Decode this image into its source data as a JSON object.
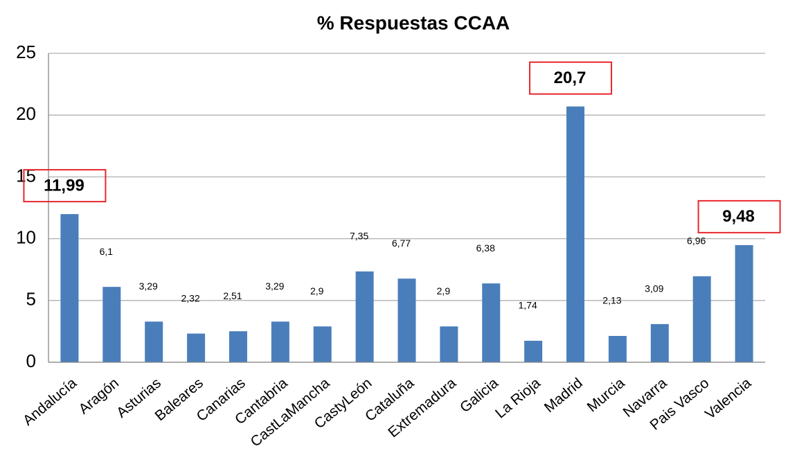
{
  "chart_data": {
    "type": "bar",
    "title": "% Respuestas CCAA",
    "categories": [
      "Andalucía",
      "Aragón",
      "Asturias",
      "Baleares",
      "Canarias",
      "Cantabria",
      "CastLaMancha",
      "CastyLeón",
      "Cataluña",
      "Extremadura",
      "Galicia",
      "La Rioja",
      "Madrid",
      "Murcia",
      "Navarra",
      "Pais Vasco",
      "Valencia"
    ],
    "values": [
      11.99,
      6.1,
      3.29,
      2.32,
      2.51,
      3.29,
      2.9,
      7.35,
      6.77,
      2.9,
      6.38,
      1.74,
      20.7,
      2.13,
      3.09,
      6.96,
      9.48
    ],
    "value_labels": [
      "11,99",
      "6,1",
      "3,29",
      "2,32",
      "2,51",
      "3,29",
      "2,9",
      "7,35",
      "6,77",
      "2,9",
      "6,38",
      "1,74",
      "20,7",
      "2,13",
      "3,09",
      "6,96",
      "9,48"
    ],
    "highlight": [
      0,
      12,
      16
    ],
    "color": "#4a7ebb",
    "highlight_color": "#e8262b",
    "ylim": [
      0,
      25
    ],
    "yticks": [
      0,
      5,
      10,
      15,
      20,
      25
    ],
    "grid": true
  }
}
